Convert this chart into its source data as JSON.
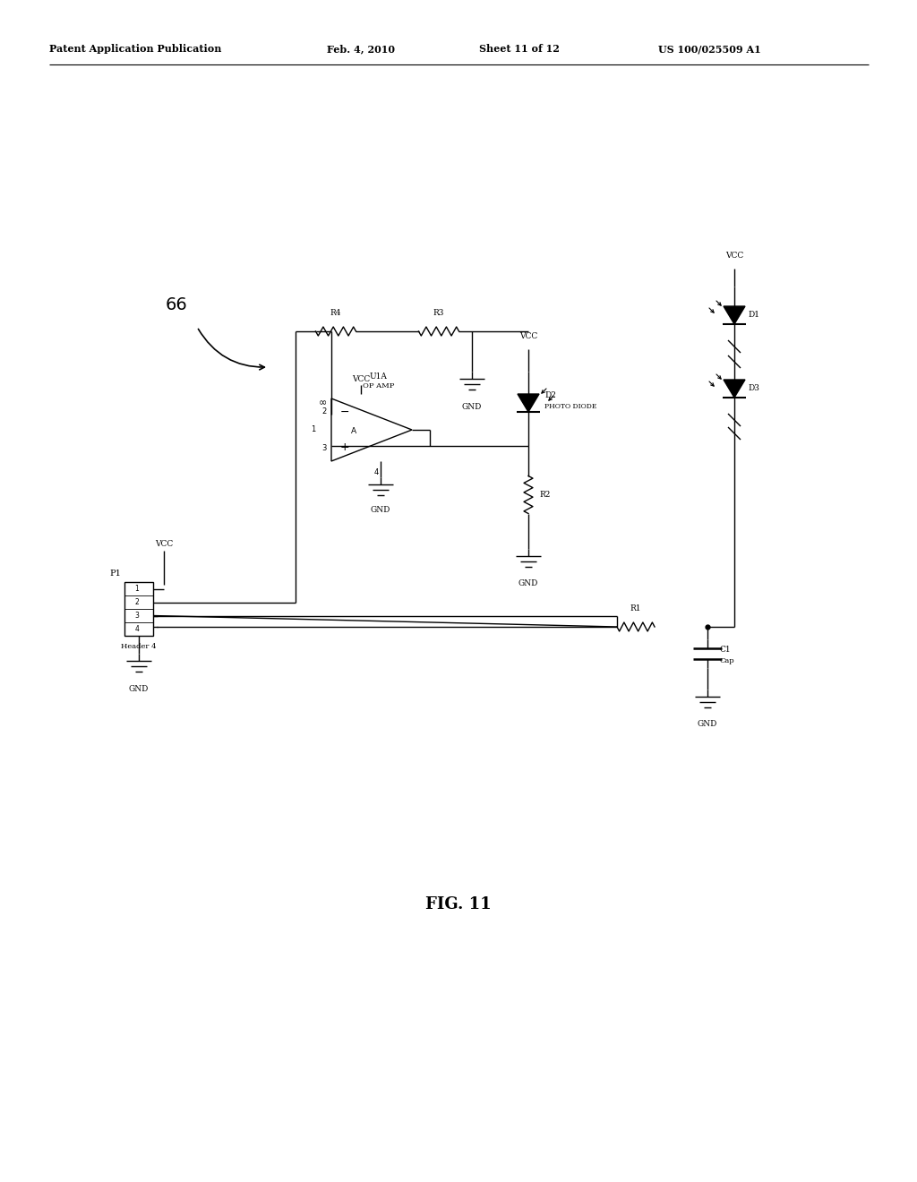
{
  "background_color": "#ffffff",
  "line_color": "#000000",
  "font_color": "#000000",
  "header_left": "Patent Application Publication",
  "header_mid1": "Feb. 4, 2010",
  "header_mid2": "Sheet 11 of 12",
  "header_right": "US 100/025509 A1",
  "fig_label": "FIG. 11",
  "circuit_label": "66",
  "lw": 1.0
}
